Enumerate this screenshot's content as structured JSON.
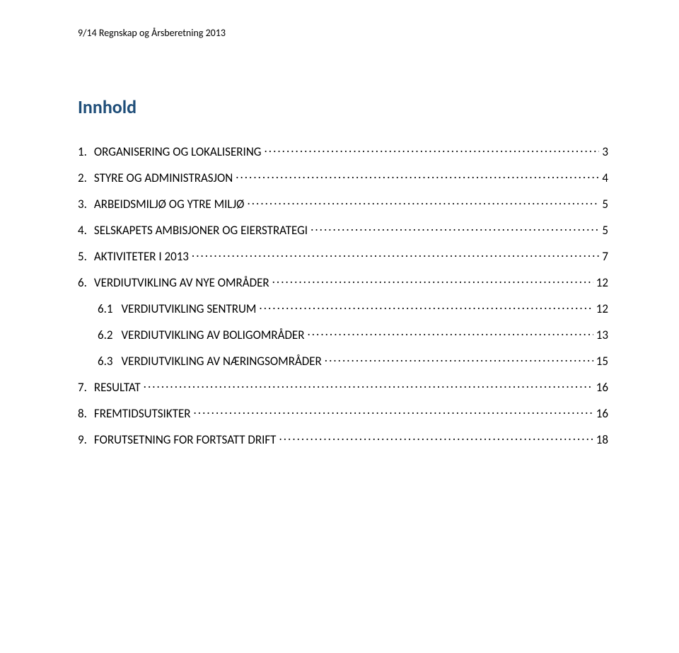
{
  "header": "9/14 Regnskap og Årsberetning 2013",
  "toc": {
    "title": "Innhold",
    "title_color": "#1f4e79",
    "text_color": "#000000",
    "font_size_title": 26,
    "font_size_entry": 17,
    "entries": [
      {
        "num": "1.",
        "label": "ORGANISERING OG LOKALISERING",
        "page": "3",
        "indent": 0
      },
      {
        "num": "2.",
        "label": "STYRE OG ADMINISTRASJON",
        "page": "4",
        "indent": 0
      },
      {
        "num": "3.",
        "label": "ARBEIDSMILJØ OG YTRE MILJØ",
        "page": "5",
        "indent": 0
      },
      {
        "num": "4.",
        "label": "SELSKAPETS AMBISJONER OG EIERSTRATEGI",
        "page": "5",
        "indent": 0
      },
      {
        "num": "5.",
        "label": "AKTIVITETER I 2013",
        "page": "7",
        "indent": 0
      },
      {
        "num": "6.",
        "label": "VERDIUTVIKLING AV NYE OMRÅDER",
        "page": "12",
        "indent": 0
      },
      {
        "num": "6.1",
        "label": "VERDIUTVIKLING SENTRUM",
        "page": "12",
        "indent": 1
      },
      {
        "num": "6.2",
        "label": "VERDIUTVIKLING AV BOLIGOMRÅDER",
        "page": "13",
        "indent": 1
      },
      {
        "num": "6.3",
        "label": "VERDIUTVIKLING AV NÆRINGSOMRÅDER",
        "page": "15",
        "indent": 1
      },
      {
        "num": "7.",
        "label": "RESULTAT",
        "page": "16",
        "indent": 0
      },
      {
        "num": "8.",
        "label": "FREMTIDSUTSIKTER",
        "page": "16",
        "indent": 0
      },
      {
        "num": "9.",
        "label": "FORUTSETNING FOR FORTSATT DRIFT",
        "page": "18",
        "indent": 0
      }
    ]
  }
}
